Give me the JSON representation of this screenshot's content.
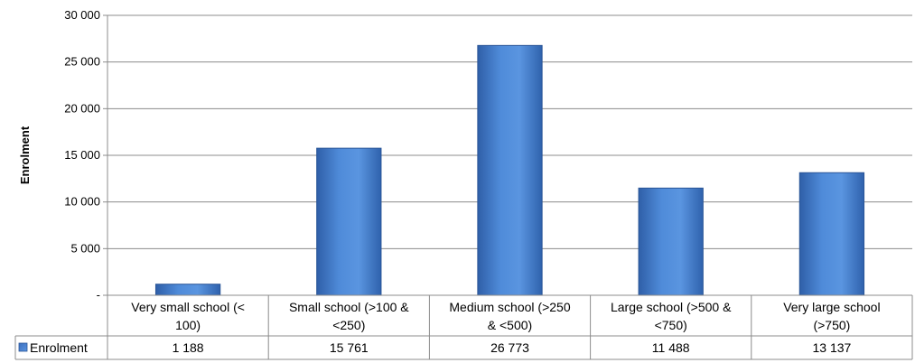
{
  "chart_data": {
    "type": "bar",
    "ylabel": "Enrolment",
    "xlabel": "",
    "ylim": [
      0,
      30000
    ],
    "yticks": [
      {
        "value": 0,
        "label": "-"
      },
      {
        "value": 5000,
        "label": "5 000"
      },
      {
        "value": 10000,
        "label": "10 000"
      },
      {
        "value": 15000,
        "label": "15 000"
      },
      {
        "value": 20000,
        "label": "20 000"
      },
      {
        "value": 25000,
        "label": "25 000"
      },
      {
        "value": 30000,
        "label": "30 000"
      }
    ],
    "grid": true,
    "categories": [
      [
        "Very small school (<",
        "100)"
      ],
      [
        "Small school (>100 &",
        "<250)"
      ],
      [
        "Medium school (>250",
        "& <500)"
      ],
      [
        "Large school (>500 &",
        "<750)"
      ],
      [
        "Very large school",
        "(>750)"
      ]
    ],
    "series": [
      {
        "name": "Enrolment",
        "values": [
          1188,
          15761,
          26773,
          11488,
          13137
        ],
        "value_labels": [
          "1 188",
          "15 761",
          "26 773",
          "11 488",
          "13 137"
        ],
        "color": "#4a7fc9"
      }
    ],
    "legend": "data-table"
  }
}
